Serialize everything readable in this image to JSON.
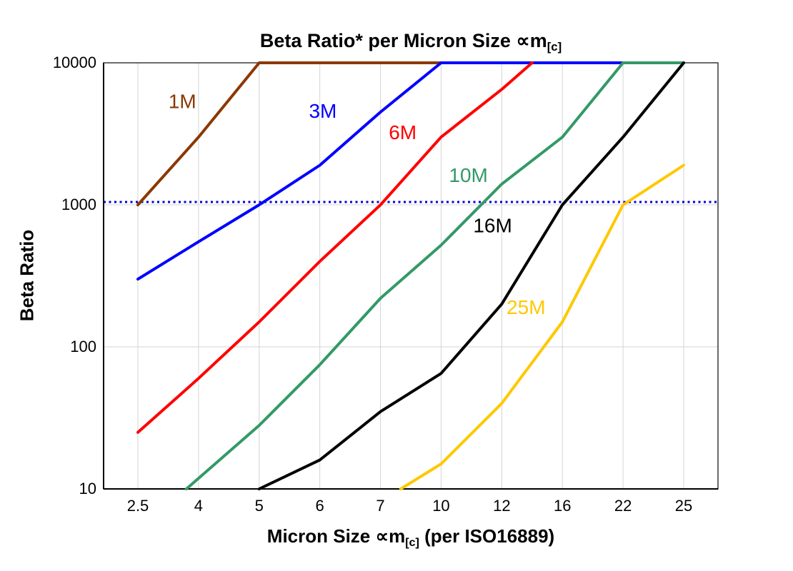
{
  "chart_data": {
    "type": "line",
    "title_main": "Beta Ratio* per Micron Size ∝m",
    "title_sub": "[c]",
    "ylabel": "Beta Ratio",
    "xlabel_pre": "Micron Size ∝m",
    "xlabel_sub": "[c]",
    "xlabel_post": " (per ISO16889)",
    "x_categories": [
      2.5,
      4,
      5,
      6,
      7,
      10,
      12,
      16,
      22,
      25
    ],
    "x_tick_labels": [
      "2.5",
      "4",
      "5",
      "6",
      "7",
      "10",
      "12",
      "16",
      "22",
      "25"
    ],
    "y_ticks": [
      10,
      100,
      1000,
      10000
    ],
    "y_tick_labels": [
      "10",
      "100",
      "1000",
      "10000"
    ],
    "y_scale": "log",
    "ylim": [
      10,
      10000
    ],
    "grid": true,
    "legend_position": "inline-labels",
    "reference_line": {
      "y": 1000,
      "color": "#0000DD",
      "style": "dotted"
    },
    "series": [
      {
        "name": "1M",
        "color": "#8B3800",
        "points": [
          [
            2.5,
            1000
          ],
          [
            4,
            3000
          ],
          [
            5,
            10000
          ],
          [
            10,
            10000
          ]
        ],
        "label_pos": [
          3.6,
          4800
        ]
      },
      {
        "name": "3M",
        "color": "#0000FF",
        "points": [
          [
            2.5,
            300
          ],
          [
            4,
            550
          ],
          [
            5,
            1000
          ],
          [
            6,
            1900
          ],
          [
            7,
            4500
          ],
          [
            10,
            10000
          ],
          [
            22,
            10000
          ]
        ],
        "label_pos": [
          6.05,
          4100
        ]
      },
      {
        "name": "6M",
        "color": "#FF0000",
        "points": [
          [
            2.5,
            25
          ],
          [
            4,
            60
          ],
          [
            5,
            150
          ],
          [
            6,
            400
          ],
          [
            7,
            1000
          ],
          [
            10,
            3000
          ],
          [
            12,
            6500
          ],
          [
            14,
            10000
          ]
        ],
        "label_pos": [
          8.1,
          2900
        ]
      },
      {
        "name": "10M",
        "color": "#339966",
        "points": [
          [
            3.7,
            10
          ],
          [
            5,
            28
          ],
          [
            6,
            75
          ],
          [
            7,
            220
          ],
          [
            10,
            520
          ],
          [
            12,
            1400
          ],
          [
            16,
            3000
          ],
          [
            22,
            10000
          ],
          [
            25,
            10000
          ]
        ],
        "label_pos": [
          10.9,
          1450
        ]
      },
      {
        "name": "16M",
        "color": "#000000",
        "points": [
          [
            5,
            10
          ],
          [
            6,
            16
          ],
          [
            7,
            35
          ],
          [
            10,
            65
          ],
          [
            12,
            200
          ],
          [
            16,
            1000
          ],
          [
            22,
            3000
          ],
          [
            25,
            10000
          ]
        ],
        "label_pos": [
          11.7,
          640
        ]
      },
      {
        "name": "25M",
        "color": "#FFC800",
        "points": [
          [
            8,
            10
          ],
          [
            10,
            15
          ],
          [
            12,
            40
          ],
          [
            16,
            150
          ],
          [
            22,
            1000
          ],
          [
            25,
            1900
          ]
        ],
        "label_pos": [
          13.6,
          170
        ]
      }
    ]
  }
}
